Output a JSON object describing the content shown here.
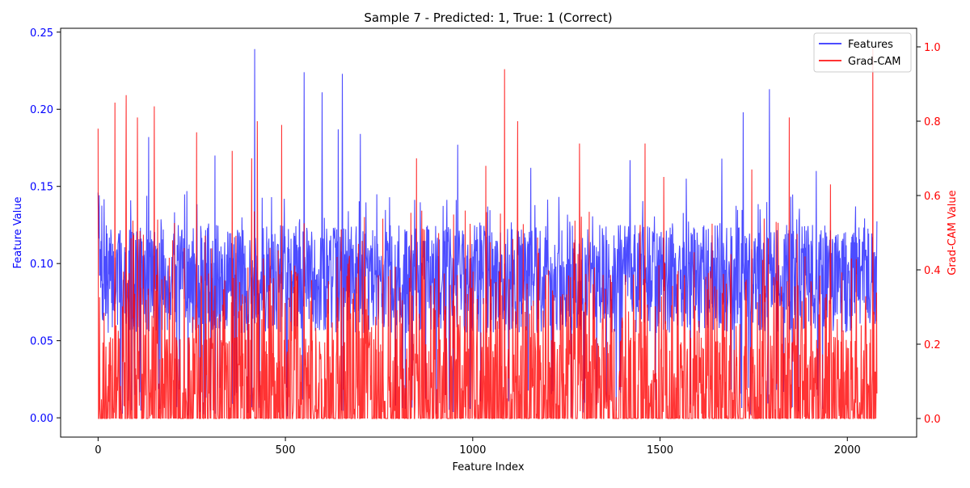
{
  "chart_data": {
    "type": "line",
    "title": "Sample 7 - Predicted: 1, True: 1 (Correct)",
    "xlabel": "Feature Index",
    "ylabel_left": "Feature Value",
    "ylabel_right": "Grad-CAM Value",
    "xlim": [
      -100,
      2185
    ],
    "ylim_left": [
      -0.0125,
      0.2525
    ],
    "ylim_right": [
      -0.05,
      1.05
    ],
    "x_ticks": [
      0,
      500,
      1000,
      1500,
      2000
    ],
    "x_tick_labels": [
      "0",
      "500",
      "1000",
      "1500",
      "2000"
    ],
    "y_ticks_left": [
      0.0,
      0.05,
      0.1,
      0.15,
      0.2,
      0.25
    ],
    "y_tick_labels_left": [
      "0.00",
      "0.05",
      "0.10",
      "0.15",
      "0.20",
      "0.25"
    ],
    "y_ticks_right": [
      0.0,
      0.2,
      0.4,
      0.6,
      0.8,
      1.0
    ],
    "y_tick_labels_right": [
      "0.0",
      "0.2",
      "0.4",
      "0.6",
      "0.8",
      "1.0"
    ],
    "n_points": 2080,
    "grid": false,
    "legend_position": "top-right",
    "series": [
      {
        "name": "Features",
        "axis": "left",
        "color": "#0000ff",
        "alpha": 0.7,
        "approx_baseline": 0.09,
        "approx_spread": 0.035,
        "peaks": [
          [
            0,
            0.146
          ],
          [
            135,
            0.182
          ],
          [
            237,
            0.147
          ],
          [
            312,
            0.17
          ],
          [
            418,
            0.239
          ],
          [
            550,
            0.224
          ],
          [
            598,
            0.211
          ],
          [
            641,
            0.187
          ],
          [
            652,
            0.223
          ],
          [
            700,
            0.184
          ],
          [
            960,
            0.177
          ],
          [
            1155,
            0.162
          ],
          [
            1420,
            0.167
          ],
          [
            1570,
            0.155
          ],
          [
            1665,
            0.168
          ],
          [
            1722,
            0.198
          ],
          [
            1792,
            0.213
          ],
          [
            1917,
            0.16
          ],
          [
            2022,
            0.137
          ],
          [
            2080,
            0.005
          ]
        ]
      },
      {
        "name": "Grad-CAM",
        "axis": "right",
        "color": "#ff0000",
        "alpha": 0.8,
        "peaks": [
          [
            0,
            0.78
          ],
          [
            45,
            0.85
          ],
          [
            75,
            0.87
          ],
          [
            105,
            0.81
          ],
          [
            150,
            0.84
          ],
          [
            263,
            0.77
          ],
          [
            358,
            0.72
          ],
          [
            410,
            0.7
          ],
          [
            425,
            0.8
          ],
          [
            490,
            0.79
          ],
          [
            850,
            0.7
          ],
          [
            1035,
            0.68
          ],
          [
            1085,
            0.94
          ],
          [
            1120,
            0.8
          ],
          [
            1285,
            0.74
          ],
          [
            1460,
            0.74
          ],
          [
            1510,
            0.65
          ],
          [
            1745,
            0.67
          ],
          [
            1845,
            0.81
          ],
          [
            1955,
            0.63
          ],
          [
            2068,
            1.0
          ],
          [
            2080,
            0.19
          ]
        ]
      }
    ]
  }
}
